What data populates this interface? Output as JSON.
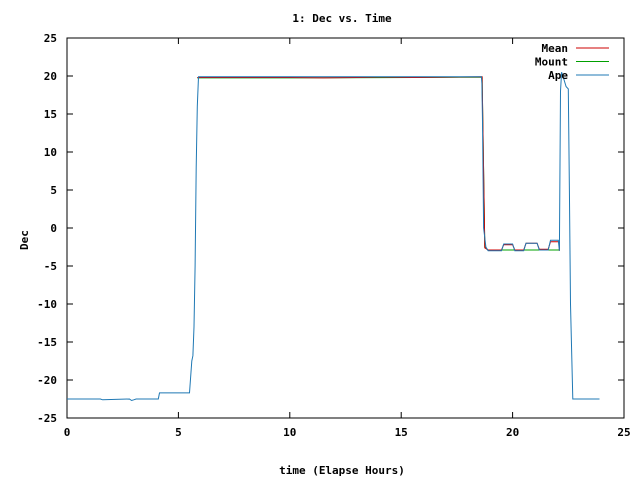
{
  "chart_data": {
    "type": "line",
    "title": "1: Dec vs. Time",
    "xlabel": "time (Elapse Hours)",
    "ylabel": "Dec",
    "xlim": [
      0,
      25
    ],
    "ylim": [
      -25,
      25
    ],
    "xticks": [
      0,
      5,
      10,
      15,
      20,
      25
    ],
    "xtick_labels": [
      "0",
      "5",
      "10",
      "15",
      "20",
      "25"
    ],
    "yticks": [
      -25,
      -20,
      -15,
      -10,
      -5,
      0,
      5,
      10,
      15,
      20,
      25
    ],
    "ytick_labels": [
      "-25",
      "-20",
      "-15",
      "-10",
      "-5",
      "0",
      "5",
      "10",
      "15",
      "20",
      "25"
    ],
    "grid": false,
    "legend_position": "top-right",
    "series": [
      {
        "name": "Mean",
        "color": "#cc0000",
        "x": [
          5.85,
          10.0,
          11.5,
          13.0,
          14.0,
          15.6,
          18.63,
          18.75,
          18.9,
          19.5,
          19.6,
          20.0,
          20.1,
          20.5,
          20.6,
          21.1,
          21.2,
          21.6,
          21.7,
          22.1,
          22.1
        ],
        "y": [
          19.8,
          19.8,
          19.75,
          19.8,
          19.85,
          19.8,
          19.9,
          -2.6,
          -2.9,
          -2.9,
          -2.2,
          -2.2,
          -2.9,
          -2.9,
          -2.0,
          -2.0,
          -2.8,
          -2.8,
          -1.8,
          -1.8,
          -3.0
        ]
      },
      {
        "name": "Mount",
        "color": "#00a000",
        "x": [
          5.85,
          10.0,
          15.6,
          18.63,
          18.75,
          18.9,
          22.1
        ],
        "y": [
          19.75,
          19.75,
          19.8,
          19.85,
          -2.5,
          -2.9,
          -2.9
        ]
      },
      {
        "name": "Ape",
        "color": "#1f78b4",
        "x": [
          0.0,
          1.5,
          1.6,
          2.8,
          2.9,
          3.0,
          3.1,
          4.1,
          4.15,
          5.5,
          5.6,
          5.65,
          5.7,
          5.75,
          5.8,
          5.85,
          5.9,
          18.6,
          18.62,
          18.65,
          18.7,
          18.8,
          18.9,
          19.5,
          19.6,
          20.0,
          20.1,
          20.5,
          20.6,
          21.1,
          21.2,
          21.6,
          21.7,
          22.05,
          22.1,
          22.15,
          22.2,
          22.3,
          22.4,
          22.5,
          22.55,
          22.6,
          22.7,
          23.9
        ],
        "y": [
          -22.5,
          -22.5,
          -22.6,
          -22.5,
          -22.7,
          -22.6,
          -22.5,
          -22.5,
          -21.7,
          -21.7,
          -17.5,
          -16.8,
          -13.0,
          -5.0,
          8.0,
          16.0,
          19.9,
          19.9,
          19.0,
          14.0,
          0.0,
          -2.5,
          -3.0,
          -3.0,
          -2.1,
          -2.1,
          -3.0,
          -3.0,
          -2.0,
          -2.0,
          -2.9,
          -2.9,
          -1.6,
          -1.6,
          -3.0,
          18.0,
          20.5,
          19.6,
          18.6,
          18.3,
          5.0,
          -10.0,
          -22.5,
          -22.5
        ]
      }
    ]
  }
}
